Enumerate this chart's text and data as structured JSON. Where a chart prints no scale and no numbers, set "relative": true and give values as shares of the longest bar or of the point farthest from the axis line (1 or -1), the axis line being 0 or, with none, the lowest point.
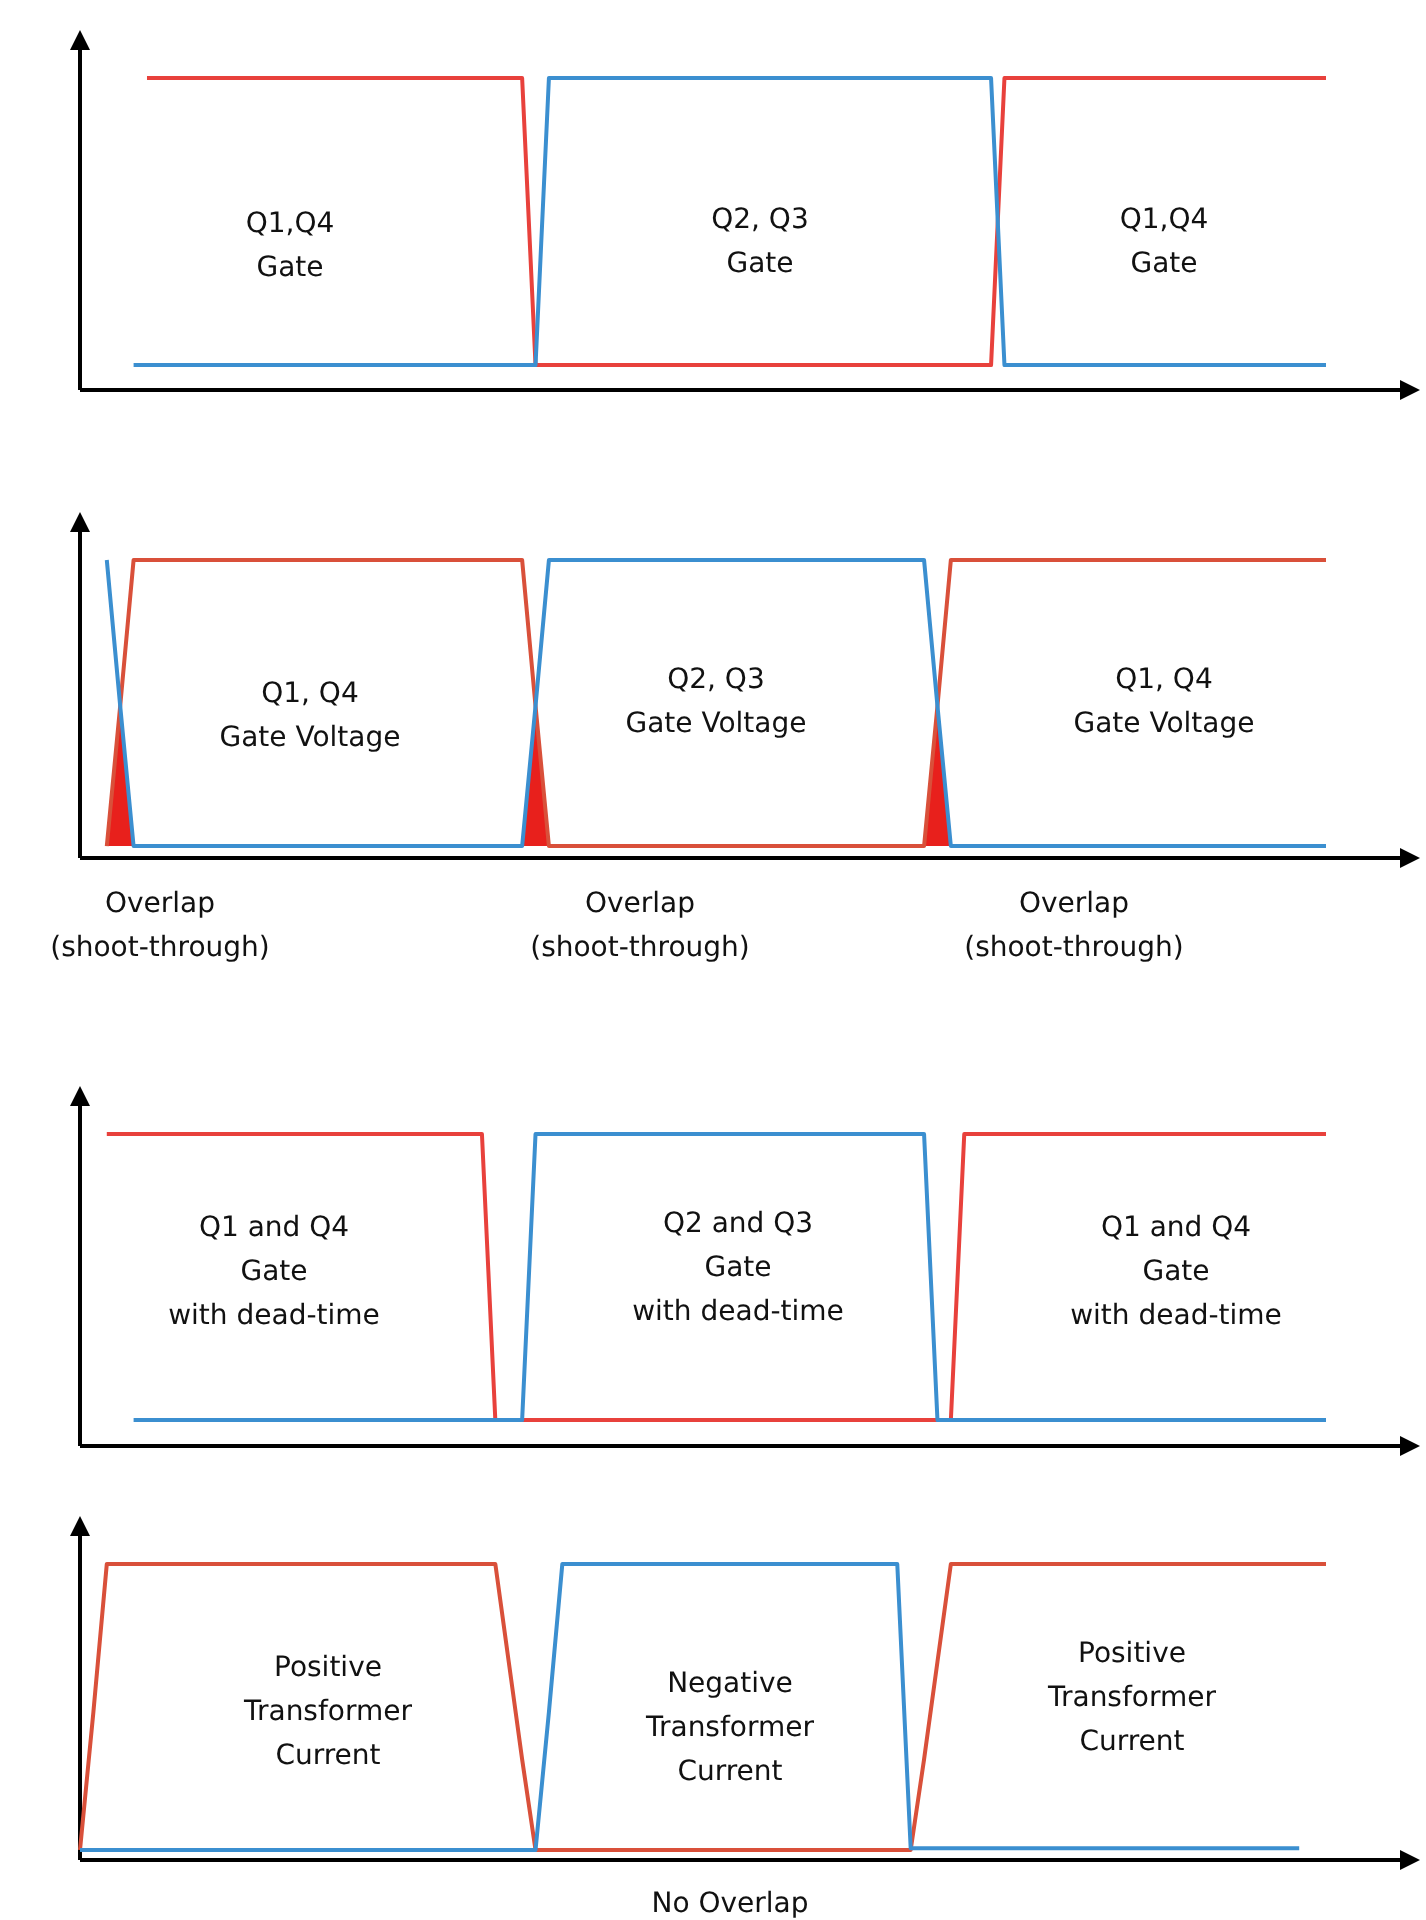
{
  "chart_data": [
    {
      "type": "line",
      "relative": true,
      "categories": [
        null,
        null,
        null,
        null,
        null,
        null,
        null,
        null,
        null,
        null,
        null,
        null,
        null,
        null,
        null,
        null,
        null,
        null,
        null,
        null,
        null,
        null,
        null,
        null,
        null,
        null,
        null,
        null,
        null,
        null,
        null,
        null,
        null,
        null,
        null,
        null,
        null,
        null,
        null,
        null,
        null,
        null,
        null,
        null,
        null,
        null,
        null,
        null,
        null,
        null,
        null,
        null,
        null,
        null,
        null,
        null,
        null,
        null,
        null,
        null,
        null,
        null,
        null,
        null,
        null,
        null,
        null,
        null,
        null,
        null,
        null,
        null,
        null,
        null,
        null,
        null,
        null,
        null,
        null,
        null,
        null,
        null,
        null,
        null,
        null,
        null,
        null,
        null,
        null,
        null,
        null,
        null,
        null,
        null
      ],
      "marker": "none",
      "line_style": "solid",
      "series": [
        {
          "color": "#e8413c",
          "values": [
            null,
            null,
            null,
            null,
            null,
            1,
            1,
            1,
            1,
            1,
            1,
            1,
            1,
            1,
            1,
            1,
            1,
            1,
            1,
            1,
            1,
            1,
            1,
            1,
            1,
            1,
            1,
            1,
            1,
            1,
            1,
            1,
            1,
            1,
            0.08,
            0.08,
            0.08,
            0.08,
            0.08,
            0.08,
            0.08,
            0.08,
            0.08,
            0.08,
            0.08,
            0.08,
            0.08,
            0.08,
            0.08,
            0.08,
            0.08,
            0.08,
            0.08,
            0.08,
            0.08,
            0.08,
            0.08,
            0.08,
            0.08,
            0.08,
            0.08,
            0.08,
            0.08,
            0.08,
            0.08,
            0.08,
            0.08,
            0.08,
            0.08,
            1,
            1,
            1,
            1,
            1,
            1,
            1,
            1,
            1,
            1,
            1,
            1,
            1,
            1,
            1,
            1,
            1,
            1,
            1,
            1,
            1,
            1,
            1,
            1,
            1
          ]
        },
        {
          "color": "#3b8fd0",
          "values": [
            null,
            null,
            null,
            null,
            0.08,
            0.08,
            0.08,
            0.08,
            0.08,
            0.08,
            0.08,
            0.08,
            0.08,
            0.08,
            0.08,
            0.08,
            0.08,
            0.08,
            0.08,
            0.08,
            0.08,
            0.08,
            0.08,
            0.08,
            0.08,
            0.08,
            0.08,
            0.08,
            0.08,
            0.08,
            0.08,
            0.08,
            0.08,
            0.08,
            0.08,
            1,
            1,
            1,
            1,
            1,
            1,
            1,
            1,
            1,
            1,
            1,
            1,
            1,
            1,
            1,
            1,
            1,
            1,
            1,
            1,
            1,
            1,
            1,
            1,
            1,
            1,
            1,
            1,
            1,
            1,
            1,
            1,
            1,
            1,
            0.08,
            0.08,
            0.08,
            0.08,
            0.08,
            0.08,
            0.08,
            0.08,
            0.08,
            0.08,
            0.08,
            0.08,
            0.08,
            0.08,
            0.08,
            0.08,
            0.08,
            0.08,
            0.08,
            0.08,
            0.08,
            0.08,
            0.08,
            0.08,
            0.08
          ]
        }
      ],
      "annotations": [
        "Q1,Q4\nGate",
        "Q2, Q3\nGate",
        "Q1,Q4\nGate"
      ]
    },
    {
      "type": "line",
      "relative": true,
      "categories": [
        null,
        null,
        null,
        null,
        null,
        null,
        null,
        null,
        null,
        null,
        null,
        null,
        null,
        null,
        null,
        null,
        null,
        null,
        null,
        null,
        null,
        null,
        null,
        null,
        null,
        null,
        null,
        null,
        null,
        null,
        null,
        null,
        null,
        null,
        null,
        null,
        null,
        null,
        null,
        null,
        null,
        null,
        null,
        null,
        null,
        null,
        null,
        null,
        null,
        null,
        null,
        null,
        null,
        null,
        null,
        null,
        null,
        null,
        null,
        null,
        null,
        null,
        null,
        null,
        null,
        null,
        null,
        null,
        null,
        null,
        null,
        null,
        null,
        null,
        null,
        null,
        null,
        null,
        null,
        null,
        null,
        null,
        null,
        null,
        null,
        null,
        null,
        null,
        null,
        null,
        null,
        null,
        null,
        null
      ],
      "marker": "none",
      "line_style": "solid",
      "series": [
        {
          "type": "area",
          "color": "#e8201c",
          "values": [
            null,
            null,
            0.04,
            0.51,
            0.04,
            null,
            null,
            null,
            null,
            null,
            null,
            null,
            null,
            null,
            null,
            null,
            null,
            null,
            null,
            null,
            null,
            null,
            null,
            null,
            null,
            null,
            null,
            null,
            null,
            null,
            null,
            null,
            null,
            null,
            null,
            null,
            null,
            null,
            null,
            null,
            null,
            null,
            null,
            null,
            null,
            null,
            null,
            null,
            null,
            null,
            null,
            null,
            null,
            null,
            null,
            null,
            null,
            null,
            null,
            null,
            null,
            null,
            null,
            null,
            null,
            null,
            null,
            null,
            null,
            null,
            null,
            null,
            null,
            null,
            null,
            null,
            null,
            null,
            null,
            null,
            null,
            null,
            null,
            null,
            null,
            null,
            null,
            null,
            null,
            null,
            null,
            null,
            null,
            null
          ]
        },
        {
          "type": "area",
          "color": "#e8201c",
          "values": [
            null,
            null,
            null,
            null,
            null,
            null,
            null,
            null,
            null,
            null,
            null,
            null,
            null,
            null,
            null,
            null,
            null,
            null,
            null,
            null,
            null,
            null,
            null,
            null,
            null,
            null,
            null,
            null,
            null,
            null,
            null,
            null,
            null,
            0.04,
            0.51,
            0.04,
            null,
            null,
            null,
            null,
            null,
            null,
            null,
            null,
            null,
            null,
            null,
            null,
            null,
            null,
            null,
            null,
            null,
            null,
            null,
            null,
            null,
            null,
            null,
            null,
            null,
            null,
            null,
            null,
            null,
            null,
            null,
            null,
            null,
            null,
            null,
            null,
            null,
            null,
            null,
            null,
            null,
            null,
            null,
            null,
            null,
            null,
            null,
            null,
            null,
            null,
            null,
            null,
            null,
            null,
            null,
            null,
            null,
            null
          ]
        },
        {
          "type": "area",
          "color": "#e8201c",
          "values": [
            null,
            null,
            null,
            null,
            null,
            null,
            null,
            null,
            null,
            null,
            null,
            null,
            null,
            null,
            null,
            null,
            null,
            null,
            null,
            null,
            null,
            null,
            null,
            null,
            null,
            null,
            null,
            null,
            null,
            null,
            null,
            null,
            null,
            null,
            null,
            null,
            null,
            null,
            null,
            null,
            null,
            null,
            null,
            null,
            null,
            null,
            null,
            null,
            null,
            null,
            null,
            null,
            null,
            null,
            null,
            null,
            null,
            null,
            null,
            null,
            null,
            null,
            null,
            0.04,
            0.51,
            0.04,
            null,
            null,
            null,
            null,
            null,
            null,
            null,
            null,
            null,
            null,
            null,
            null,
            null,
            null,
            null,
            null,
            null,
            null,
            null,
            null,
            null,
            null,
            null,
            null,
            null,
            null,
            null,
            null
          ]
        },
        {
          "color": "#d9503a",
          "values": [
            null,
            null,
            0.04,
            0.51,
            1,
            1,
            1,
            1,
            1,
            1,
            1,
            1,
            1,
            1,
            1,
            1,
            1,
            1,
            1,
            1,
            1,
            1,
            1,
            1,
            1,
            1,
            1,
            1,
            1,
            1,
            1,
            1,
            1,
            1,
            0.51,
            0.04,
            0.04,
            0.04,
            0.04,
            0.04,
            0.04,
            0.04,
            0.04,
            0.04,
            0.04,
            0.04,
            0.04,
            0.04,
            0.04,
            0.04,
            0.04,
            0.04,
            0.04,
            0.04,
            0.04,
            0.04,
            0.04,
            0.04,
            0.04,
            0.04,
            0.04,
            0.04,
            0.04,
            0.04,
            0.51,
            1,
            1,
            1,
            1,
            1,
            1,
            1,
            1,
            1,
            1,
            1,
            1,
            1,
            1,
            1,
            1,
            1,
            1,
            1,
            1,
            1,
            1,
            1,
            1,
            1,
            1,
            1,
            1,
            1
          ]
        },
        {
          "color": "#3b8fd0",
          "values": [
            null,
            null,
            1,
            0.51,
            0.04,
            0.04,
            0.04,
            0.04,
            0.04,
            0.04,
            0.04,
            0.04,
            0.04,
            0.04,
            0.04,
            0.04,
            0.04,
            0.04,
            0.04,
            0.04,
            0.04,
            0.04,
            0.04,
            0.04,
            0.04,
            0.04,
            0.04,
            0.04,
            0.04,
            0.04,
            0.04,
            0.04,
            0.04,
            0.04,
            0.51,
            1,
            1,
            1,
            1,
            1,
            1,
            1,
            1,
            1,
            1,
            1,
            1,
            1,
            1,
            1,
            1,
            1,
            1,
            1,
            1,
            1,
            1,
            1,
            1,
            1,
            1,
            1,
            1,
            1,
            0.51,
            0.04,
            0.04,
            0.04,
            0.04,
            0.04,
            0.04,
            0.04,
            0.04,
            0.04,
            0.04,
            0.04,
            0.04,
            0.04,
            0.04,
            0.04,
            0.04,
            0.04,
            0.04,
            0.04,
            0.04,
            0.04,
            0.04,
            0.04,
            0.04,
            0.04,
            0.04,
            0.04,
            0.04,
            0.04
          ]
        }
      ],
      "annotations": [
        "Q1, Q4\nGate Voltage",
        "Q2, Q3\nGate Voltage",
        "Q1, Q4\nGate Voltage",
        "Overlap\n(shoot-through)",
        "Overlap\n(shoot-through)",
        "Overlap\n(shoot-through)"
      ]
    },
    {
      "type": "line",
      "relative": true,
      "categories": [
        null,
        null,
        null,
        null,
        null,
        null,
        null,
        null,
        null,
        null,
        null,
        null,
        null,
        null,
        null,
        null,
        null,
        null,
        null,
        null,
        null,
        null,
        null,
        null,
        null,
        null,
        null,
        null,
        null,
        null,
        null,
        null,
        null,
        null,
        null,
        null,
        null,
        null,
        null,
        null,
        null,
        null,
        null,
        null,
        null,
        null,
        null,
        null,
        null,
        null,
        null,
        null,
        null,
        null,
        null,
        null,
        null,
        null,
        null,
        null,
        null,
        null,
        null,
        null,
        null,
        null,
        null,
        null,
        null,
        null,
        null,
        null,
        null,
        null,
        null,
        null,
        null,
        null,
        null,
        null,
        null,
        null,
        null,
        null,
        null,
        null,
        null,
        null,
        null,
        null,
        null,
        null,
        null,
        null
      ],
      "marker": "none",
      "line_style": "solid",
      "series": [
        {
          "color": "#e8413c",
          "values": [
            null,
            null,
            1,
            1,
            1,
            1,
            1,
            1,
            1,
            1,
            1,
            1,
            1,
            1,
            1,
            1,
            1,
            1,
            1,
            1,
            1,
            1,
            1,
            1,
            1,
            1,
            1,
            1,
            1,
            1,
            1,
            0.083,
            0.083,
            0.083,
            0.083,
            0.083,
            0.083,
            0.083,
            0.083,
            0.083,
            0.083,
            0.083,
            0.083,
            0.083,
            0.083,
            0.083,
            0.083,
            0.083,
            0.083,
            0.083,
            0.083,
            0.083,
            0.083,
            0.083,
            0.083,
            0.083,
            0.083,
            0.083,
            0.083,
            0.083,
            0.083,
            0.083,
            0.083,
            0.083,
            0.083,
            0.083,
            1,
            1,
            1,
            1,
            1,
            1,
            1,
            1,
            1,
            1,
            1,
            1,
            1,
            1,
            1,
            1,
            1,
            1,
            1,
            1,
            1,
            1,
            1,
            1,
            1,
            1,
            1,
            1
          ]
        },
        {
          "color": "#3b8fd0",
          "values": [
            null,
            null,
            null,
            null,
            0.083,
            0.083,
            0.083,
            0.083,
            0.083,
            0.083,
            0.083,
            0.083,
            0.083,
            0.083,
            0.083,
            0.083,
            0.083,
            0.083,
            0.083,
            0.083,
            0.083,
            0.083,
            0.083,
            0.083,
            0.083,
            0.083,
            0.083,
            0.083,
            0.083,
            0.083,
            0.083,
            0.083,
            0.083,
            0.083,
            1,
            1,
            1,
            1,
            1,
            1,
            1,
            1,
            1,
            1,
            1,
            1,
            1,
            1,
            1,
            1,
            1,
            1,
            1,
            1,
            1,
            1,
            1,
            1,
            1,
            1,
            1,
            1,
            1,
            1,
            0.083,
            0.083,
            0.083,
            0.083,
            0.083,
            0.083,
            0.083,
            0.083,
            0.083,
            0.083,
            0.083,
            0.083,
            0.083,
            0.083,
            0.083,
            0.083,
            0.083,
            0.083,
            0.083,
            0.083,
            0.083,
            0.083,
            0.083,
            0.083,
            0.083,
            0.083,
            0.083,
            0.083,
            0.083,
            0.083
          ]
        }
      ],
      "annotations": [
        "Q1 and Q4\nGate\nwith dead-time",
        "Q2 and Q3\nGate\nwith dead-time",
        "Q1 and Q4\nGate\nwith dead-time"
      ]
    },
    {
      "type": "line",
      "relative": true,
      "categories": [
        null,
        null,
        null,
        null,
        null,
        null,
        null,
        null,
        null,
        null,
        null,
        null,
        null,
        null,
        null,
        null,
        null,
        null,
        null,
        null,
        null,
        null,
        null,
        null,
        null,
        null,
        null,
        null,
        null,
        null,
        null,
        null,
        null,
        null,
        null,
        null,
        null,
        null,
        null,
        null,
        null,
        null,
        null,
        null,
        null,
        null,
        null,
        null,
        null,
        null,
        null,
        null,
        null,
        null,
        null,
        null,
        null,
        null,
        null,
        null,
        null,
        null,
        null,
        null,
        null,
        null,
        null,
        null,
        null,
        null,
        null,
        null,
        null,
        null,
        null,
        null,
        null,
        null,
        null,
        null,
        null,
        null,
        null,
        null,
        null,
        null,
        null,
        null,
        null,
        null,
        null,
        null,
        null,
        null
      ],
      "marker": "none",
      "line_style": "solid",
      "series": [
        {
          "color": "#d9503a",
          "values": [
            0.034,
            0.5,
            1,
            1,
            1,
            1,
            1,
            1,
            1,
            1,
            1,
            1,
            1,
            1,
            1,
            1,
            1,
            1,
            1,
            1,
            1,
            1,
            1,
            1,
            1,
            1,
            1,
            1,
            1,
            1,
            1,
            1,
            0.67,
            0.34,
            0.034,
            0.034,
            0.034,
            0.034,
            0.034,
            0.034,
            0.034,
            0.034,
            0.034,
            0.034,
            0.034,
            0.034,
            0.034,
            0.034,
            0.034,
            0.034,
            0.034,
            0.034,
            0.034,
            0.034,
            0.034,
            0.034,
            0.034,
            0.034,
            0.034,
            0.034,
            0.034,
            0.034,
            0.034,
            0.34,
            0.67,
            1,
            1,
            1,
            1,
            1,
            1,
            1,
            1,
            1,
            1,
            1,
            1,
            1,
            1,
            1,
            1,
            1,
            1,
            1,
            1,
            1,
            1,
            1,
            1,
            1,
            1,
            1,
            1,
            1
          ]
        },
        {
          "color": "#3b8fd0",
          "values": [
            0.034,
            0.034,
            0.034,
            0.034,
            0.034,
            0.034,
            0.034,
            0.034,
            0.034,
            0.034,
            0.034,
            0.034,
            0.034,
            0.034,
            0.034,
            0.034,
            0.034,
            0.034,
            0.034,
            0.034,
            0.034,
            0.034,
            0.034,
            0.034,
            0.034,
            0.034,
            0.034,
            0.034,
            0.034,
            0.034,
            0.034,
            0.034,
            0.034,
            0.034,
            0.034,
            0.5,
            1,
            1,
            1,
            1,
            1,
            1,
            1,
            1,
            1,
            1,
            1,
            1,
            1,
            1,
            1,
            1,
            1,
            1,
            1,
            1,
            1,
            1,
            1,
            1,
            1,
            1,
            0.04,
            0.04,
            0.04,
            0.04,
            0.04,
            0.04,
            0.04,
            0.04,
            0.04,
            0.04,
            0.04,
            0.04,
            0.04,
            0.04,
            0.04,
            0.04,
            0.04,
            0.04,
            0.04,
            0.04,
            0.04,
            0.04,
            0.04,
            0.04,
            0.04,
            0.04,
            0.04,
            0.04,
            0.04,
            0.04,
            null,
            null
          ]
        }
      ],
      "annotations": [
        "Positive\nTransformer\nCurrent",
        "Negative\nTransformer\nCurrent",
        "Positive\nTransformer\nCurrent",
        "No Overlap"
      ]
    }
  ]
}
